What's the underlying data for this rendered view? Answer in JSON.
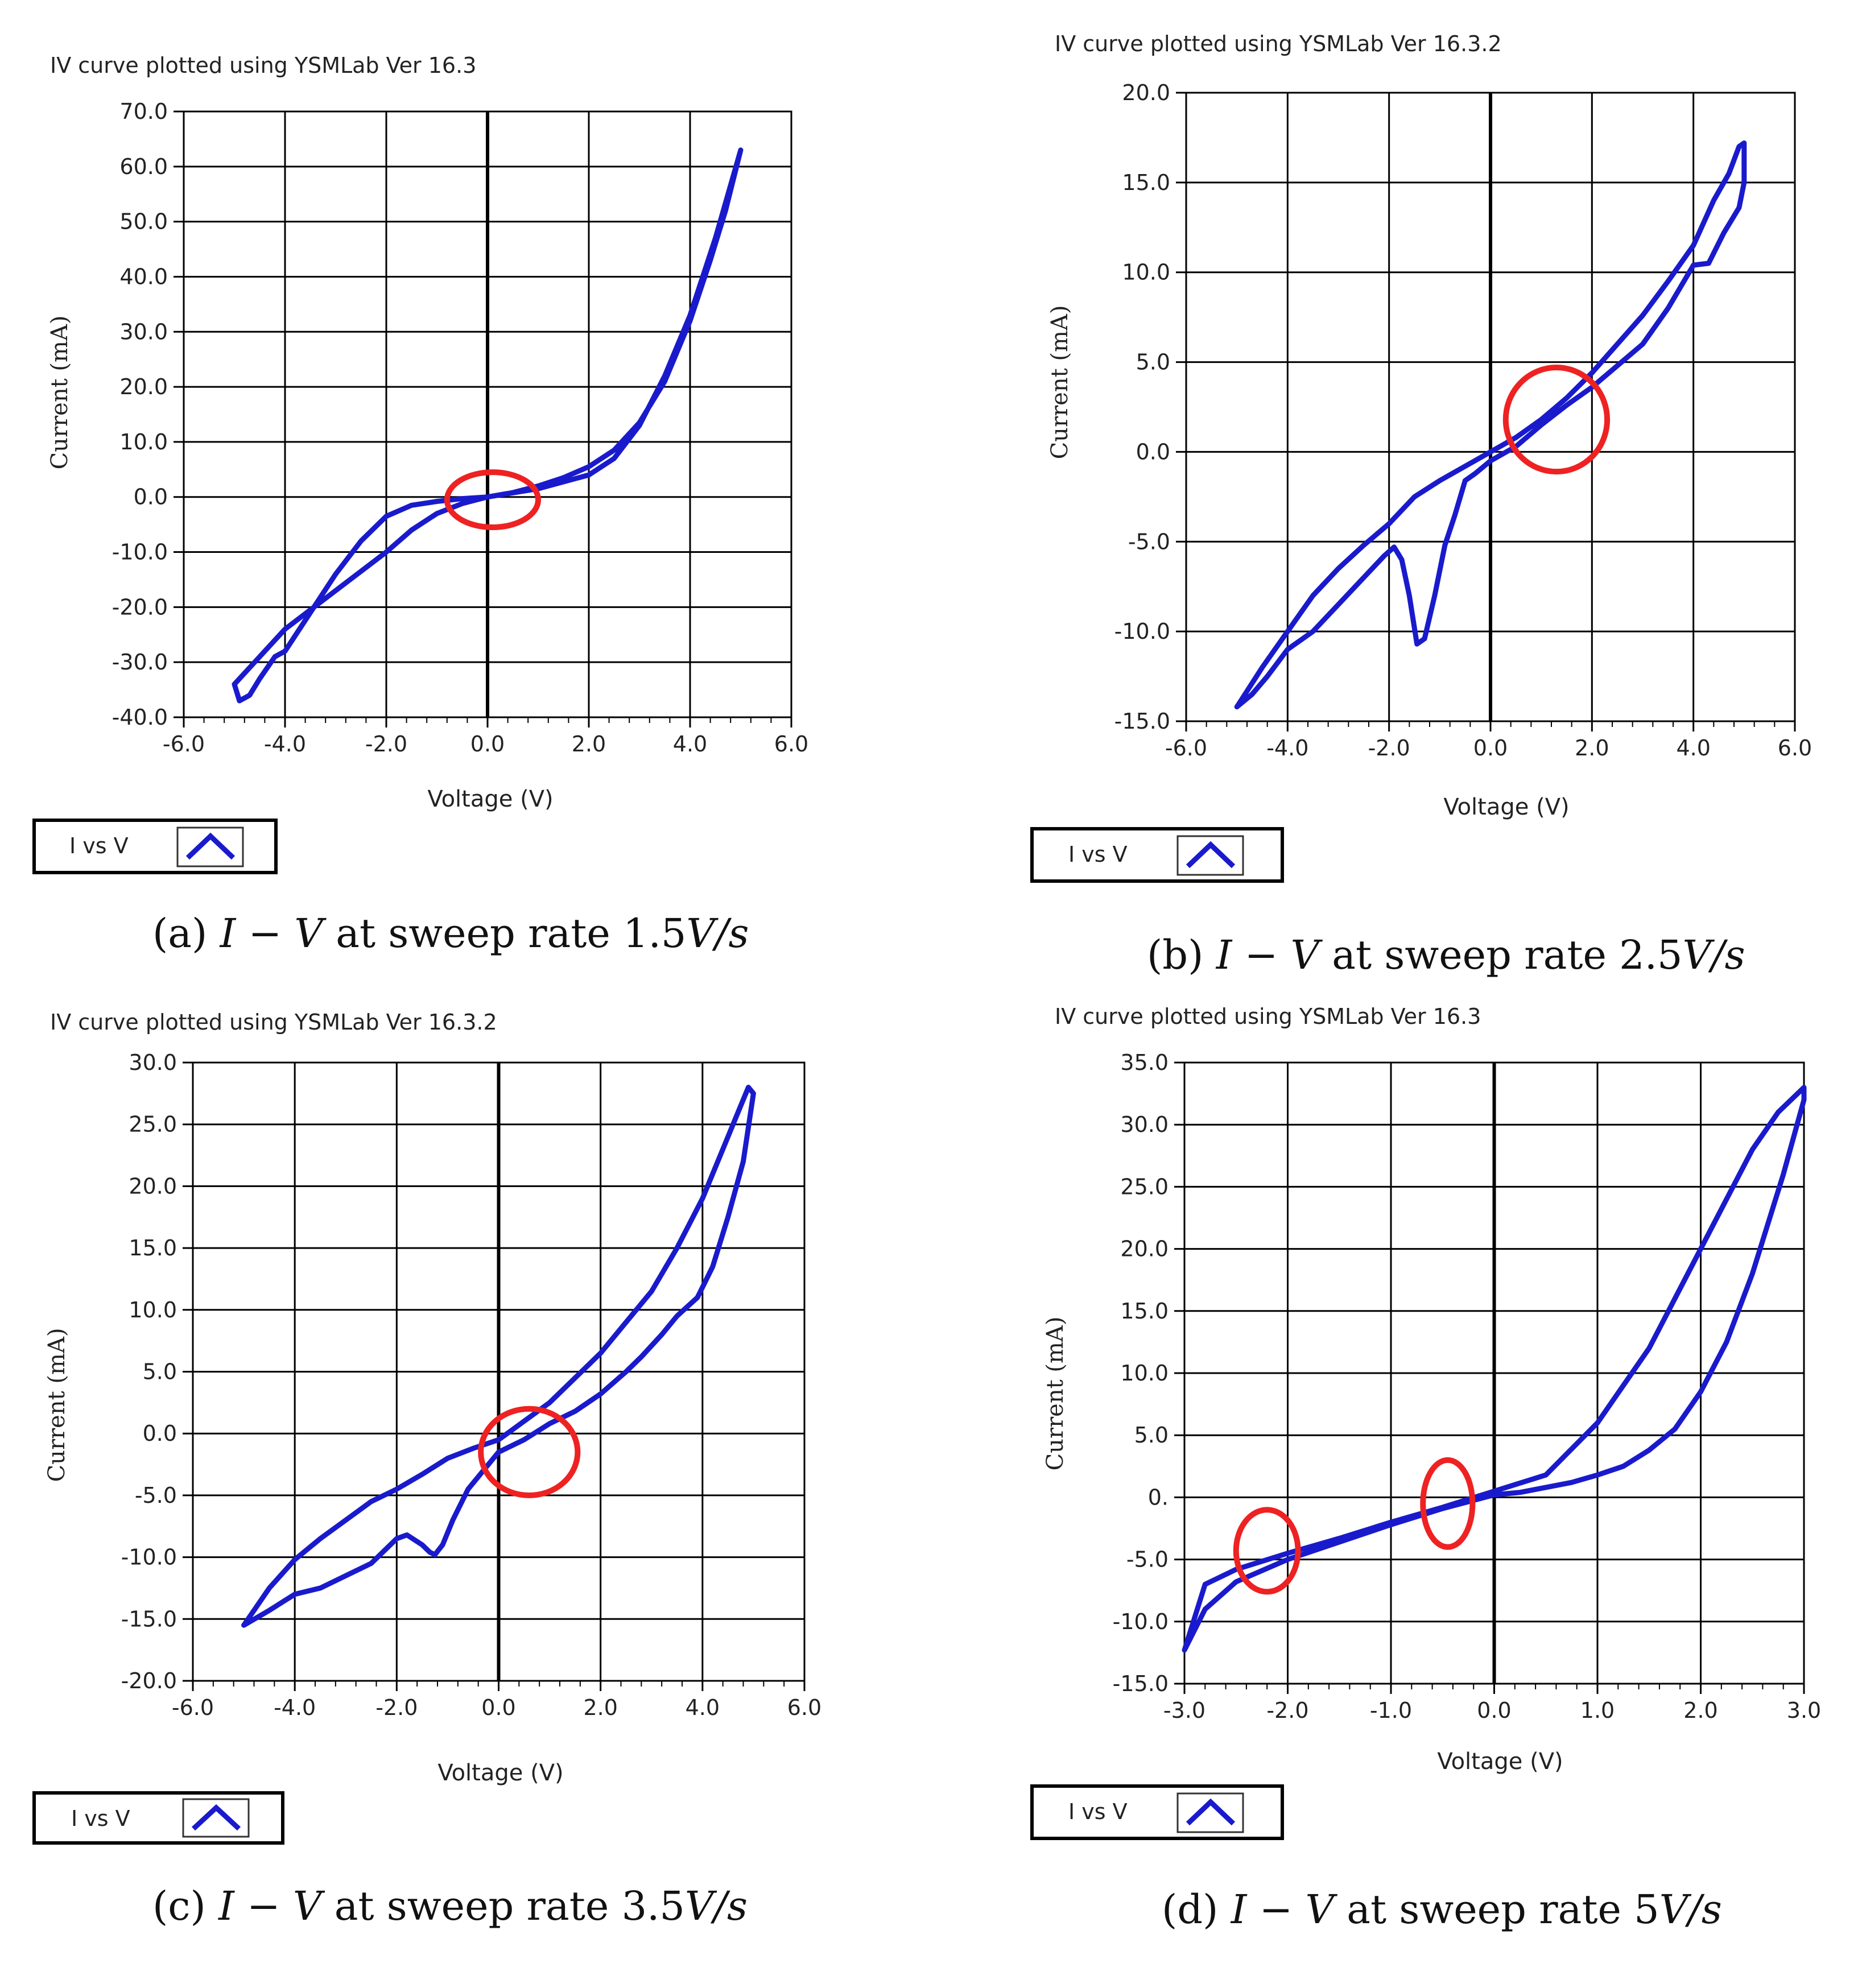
{
  "captions": [
    {
      "prefix": "(a) ",
      "sym": "I − V",
      "mid": " at sweep rate ",
      "val": "1.5",
      "unit": "V/s"
    },
    {
      "prefix": "(b) ",
      "sym": "I − V",
      "mid": " at sweep rate ",
      "val": "2.5",
      "unit": "V/s"
    },
    {
      "prefix": "(c) ",
      "sym": "I − V",
      "mid": " at sweep rate ",
      "val": "3.5",
      "unit": "V/s"
    },
    {
      "prefix": "(d) ",
      "sym": "I − V",
      "mid": " at sweep rate ",
      "val": "5",
      "unit": "V/s"
    }
  ],
  "colors": {
    "curve": "#1a1acd",
    "highlight": "#ee2222",
    "grid": "#000000"
  },
  "chart_data": [
    {
      "type": "line",
      "title": "IV curve plotted using YSMLab Ver 16.3",
      "xlabel": "Voltage (V)",
      "ylabel": "Current (mA)",
      "xlim": [
        -6,
        6
      ],
      "ylim": [
        -40,
        70
      ],
      "xticks": [
        -6,
        -4,
        -2,
        0,
        2,
        4,
        6
      ],
      "xtick_labels": [
        "-6.0",
        "-4.0",
        "-2.0",
        "0.0",
        "2.0",
        "4.0",
        "6.0"
      ],
      "yticks": [
        70,
        60,
        50,
        40,
        30,
        20,
        10,
        0,
        -10,
        -20,
        -30,
        -40
      ],
      "ytick_labels": [
        "70.0",
        "60.0",
        "50.0",
        "40.0",
        "30.0",
        "20.0",
        "10.0",
        "0.0",
        "-10.0",
        "-20.0",
        "-30.0",
        "-40.0"
      ],
      "legend": {
        "label": "I vs V"
      },
      "series": [
        {
          "name": "I vs V",
          "x": [
            0,
            1,
            2,
            2.5,
            3,
            3.5,
            4,
            4.5,
            5,
            4.7,
            4.4,
            4,
            3.5,
            3,
            2.5,
            2,
            1.5,
            1,
            0.5,
            0,
            -0.5,
            -1,
            -1.5,
            -2,
            -2.5,
            -3,
            -3.5,
            -4,
            -4.5,
            -5,
            -4.9,
            -4.7,
            -4.5,
            -4.2,
            -4,
            -3.5,
            -3,
            -2.5,
            -2,
            -1.5,
            -1,
            -0.5,
            0
          ],
          "y": [
            0,
            1.5,
            4,
            7,
            13,
            22,
            33,
            47,
            63,
            52,
            43,
            32,
            21,
            13.5,
            8.5,
            5.5,
            3.5,
            2,
            0.8,
            0,
            -1.2,
            -3,
            -6,
            -10,
            -13.5,
            -17,
            -20.5,
            -24,
            -29,
            -34,
            -37,
            -36,
            -33,
            -29,
            -28,
            -21,
            -14,
            -8,
            -3.5,
            -1.5,
            -0.8,
            -0.3,
            0
          ]
        }
      ],
      "highlights": [
        {
          "x": 0.1,
          "y": -0.5,
          "rx": 0.9,
          "ry": 5
        }
      ]
    },
    {
      "type": "line",
      "title": "IV curve plotted using YSMLab Ver 16.3.2",
      "xlabel": "Voltage (V)",
      "ylabel": "Current (mA)",
      "xlim": [
        -6,
        6
      ],
      "ylim": [
        -15,
        20
      ],
      "xticks": [
        -6,
        -4,
        -2,
        0,
        2,
        4,
        6
      ],
      "xtick_labels": [
        "-6.0",
        "-4.0",
        "-2.0",
        "0.0",
        "2.0",
        "4.0",
        "6.0"
      ],
      "yticks": [
        20,
        15,
        10,
        5,
        0,
        -5,
        -10,
        -15
      ],
      "ytick_labels": [
        "20.0",
        "15.0",
        "10.0",
        "5.0",
        "0.0",
        "-5.0",
        "-10.0",
        "-15.0"
      ],
      "legend": {
        "label": "I vs V"
      },
      "series": [
        {
          "name": "I vs V",
          "x": [
            0,
            0.5,
            1,
            1.5,
            2,
            2.5,
            3,
            3.5,
            4,
            4.4,
            4.7,
            4.9,
            5,
            5,
            4.9,
            4.6,
            4.3,
            4,
            3.5,
            3,
            2.5,
            2,
            1.5,
            1,
            0.5,
            0,
            -0.3,
            -0.5,
            -0.7,
            -0.9,
            -1.1,
            -1.3,
            -1.45,
            -1.6,
            -1.75,
            -1.9,
            -2.1,
            -2.5,
            -3,
            -3.5,
            -4,
            -4.4,
            -4.7,
            -5,
            -4.5,
            -4,
            -3.5,
            -3,
            -2.5,
            -2,
            -1.5,
            -1,
            -0.5,
            0
          ],
          "y": [
            0,
            0.8,
            1.8,
            3,
            4.4,
            6,
            7.6,
            9.5,
            11.5,
            14,
            15.5,
            17,
            17.2,
            15,
            13.6,
            12.2,
            10.5,
            10.4,
            8,
            6,
            4.8,
            3.6,
            2.6,
            1.5,
            0.3,
            -0.5,
            -1.2,
            -1.6,
            -3.5,
            -5.2,
            -8,
            -10.4,
            -10.7,
            -8,
            -6,
            -5.3,
            -5.8,
            -7,
            -8.5,
            -10,
            -11,
            -12.5,
            -13.5,
            -14.2,
            -12,
            -10,
            -8,
            -6.5,
            -5.2,
            -4,
            -2.5,
            -1.6,
            -0.8,
            0
          ]
        }
      ],
      "highlights": [
        {
          "x": 1.3,
          "y": 1.8,
          "rx": 1,
          "ry": 2.9
        }
      ]
    },
    {
      "type": "line",
      "title": "IV curve plotted using YSMLab Ver 16.3.2",
      "xlabel": "Voltage (V)",
      "ylabel": "Current (mA)",
      "xlim": [
        -6,
        6
      ],
      "ylim": [
        -20,
        30
      ],
      "xticks": [
        -6,
        -4,
        -2,
        0,
        2,
        4,
        6
      ],
      "xtick_labels": [
        "-6.0",
        "-4.0",
        "-2.0",
        "0.0",
        "2.0",
        "4.0",
        "6.0"
      ],
      "yticks": [
        30,
        25,
        20,
        15,
        10,
        5,
        0,
        -5,
        -10,
        -15,
        -20
      ],
      "ytick_labels": [
        "30.0",
        "25.0",
        "20.0",
        "15.0",
        "10.0",
        "5.0",
        "0.0",
        "-5.0",
        "-10.0",
        "-15.0",
        "-20.0"
      ],
      "legend": {
        "label": "I vs V"
      },
      "series": [
        {
          "name": "I vs V",
          "x": [
            0,
            0.5,
            1,
            1.5,
            2,
            2.5,
            3,
            3.5,
            4,
            4.4,
            4.7,
            4.9,
            5,
            4.8,
            4.5,
            4.2,
            3.9,
            3.5,
            3.2,
            2.8,
            2.5,
            2,
            1.5,
            1,
            0.5,
            0,
            -0.3,
            -0.6,
            -0.9,
            -1.1,
            -1.25,
            -1.35,
            -1.5,
            -1.8,
            -2,
            -2.5,
            -3,
            -3.5,
            -4,
            -4.5,
            -5,
            -4.5,
            -4,
            -3.5,
            -3,
            -2.5,
            -2,
            -1.5,
            -1,
            -0.5,
            0
          ],
          "y": [
            -0.5,
            1,
            2.5,
            4.5,
            6.5,
            9,
            11.5,
            15,
            19,
            23,
            26,
            28,
            27.5,
            22,
            17.5,
            13.5,
            11,
            9.5,
            8,
            6.2,
            5,
            3.2,
            1.8,
            0.8,
            -0.5,
            -1.5,
            -3,
            -4.5,
            -7,
            -9,
            -9.8,
            -9.6,
            -9,
            -8.2,
            -8.5,
            -10.5,
            -11.5,
            -12.5,
            -13,
            -14.3,
            -15.5,
            -12.5,
            -10.2,
            -8.5,
            -7,
            -5.5,
            -4.5,
            -3.3,
            -2,
            -1.2,
            -0.5
          ]
        }
      ],
      "highlights": [
        {
          "x": 0.6,
          "y": -1.5,
          "rx": 0.95,
          "ry": 3.5
        }
      ]
    },
    {
      "type": "line",
      "title": "IV curve plotted using YSMLab Ver 16.3",
      "xlabel": "Voltage (V)",
      "ylabel": "Current (mA)",
      "xlim": [
        -3,
        3
      ],
      "ylim": [
        -15,
        35
      ],
      "xticks": [
        -3,
        -2,
        -1,
        0,
        1,
        2,
        3
      ],
      "xtick_labels": [
        "-3.0",
        "-2.0",
        "-1.0",
        "0.0",
        "1.0",
        "2.0",
        "3.0"
      ],
      "yticks": [
        35,
        30,
        25,
        20,
        15,
        10,
        5,
        0,
        -5,
        -10,
        -15
      ],
      "ytick_labels": [
        "35.0",
        "30.0",
        "25.0",
        "20.0",
        "15.0",
        "10.0",
        "5.0",
        "0.",
        "-5.0",
        "-10.0",
        "-15.0"
      ],
      "legend": {
        "label": "I vs V"
      },
      "series": [
        {
          "name": "I vs V",
          "x": [
            0,
            0.5,
            1,
            1.25,
            1.5,
            1.75,
            2,
            2.25,
            2.5,
            2.75,
            3,
            3,
            2.8,
            2.5,
            2.25,
            2,
            1.75,
            1.5,
            1.25,
            1,
            0.75,
            0.5,
            0.25,
            0,
            -0.5,
            -1,
            -1.5,
            -2,
            -2.5,
            -2.8,
            -3,
            -2.8,
            -2.5,
            -2,
            -1.5,
            -1,
            -0.5,
            0
          ],
          "y": [
            0.5,
            1.8,
            6,
            9,
            12,
            16,
            20,
            24,
            28,
            31,
            33,
            32,
            26,
            18,
            12.5,
            8.5,
            5.5,
            3.8,
            2.5,
            1.8,
            1.2,
            0.8,
            0.4,
            0.2,
            -0.9,
            -2.2,
            -3.6,
            -5,
            -6.8,
            -9,
            -12.3,
            -7,
            -5.8,
            -4.5,
            -3.3,
            -2,
            -0.8,
            0.5
          ]
        }
      ],
      "highlights": [
        {
          "x": -2.2,
          "y": -4.3,
          "rx": 0.3,
          "ry": 3.3
        },
        {
          "x": -0.45,
          "y": -0.5,
          "rx": 0.24,
          "ry": 3.5
        }
      ]
    }
  ]
}
